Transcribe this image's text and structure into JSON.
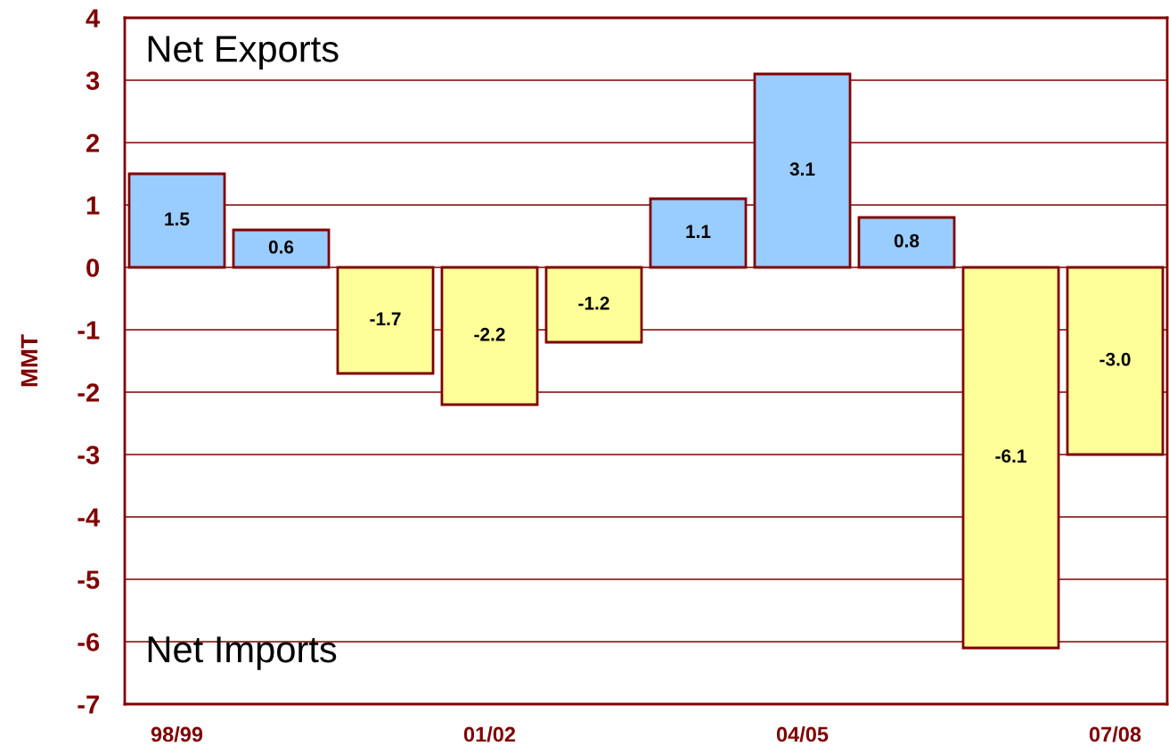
{
  "chart_data": {
    "type": "bar",
    "ylabel": "MMT",
    "categories": [
      "98/99",
      null,
      null,
      "01/02",
      null,
      null,
      "04/05",
      null,
      null,
      "07/08"
    ],
    "values": [
      1.5,
      0.6,
      -1.7,
      -2.2,
      -1.2,
      1.1,
      3.1,
      0.8,
      -6.1,
      -3.0
    ],
    "colors": [
      "#99ccff",
      "#99ccff",
      "#ffff99",
      "#ffff99",
      "#ffff99",
      "#99ccff",
      "#99ccff",
      "#99ccff",
      "#ffff99",
      "#ffff99"
    ],
    "value_labels": [
      "1.5",
      "0.6",
      "-1.7",
      "-2.2",
      "-1.2",
      "1.1",
      "3.1",
      "0.8",
      "-6.1",
      "-3.0"
    ],
    "ylim": [
      -7,
      4
    ],
    "yticks": [
      -7,
      -6,
      -5,
      -4,
      -3,
      -2,
      -1,
      0,
      1,
      2,
      3,
      4
    ],
    "grid": "y",
    "annotations": [
      "Net Exports",
      "Net Imports"
    ]
  }
}
